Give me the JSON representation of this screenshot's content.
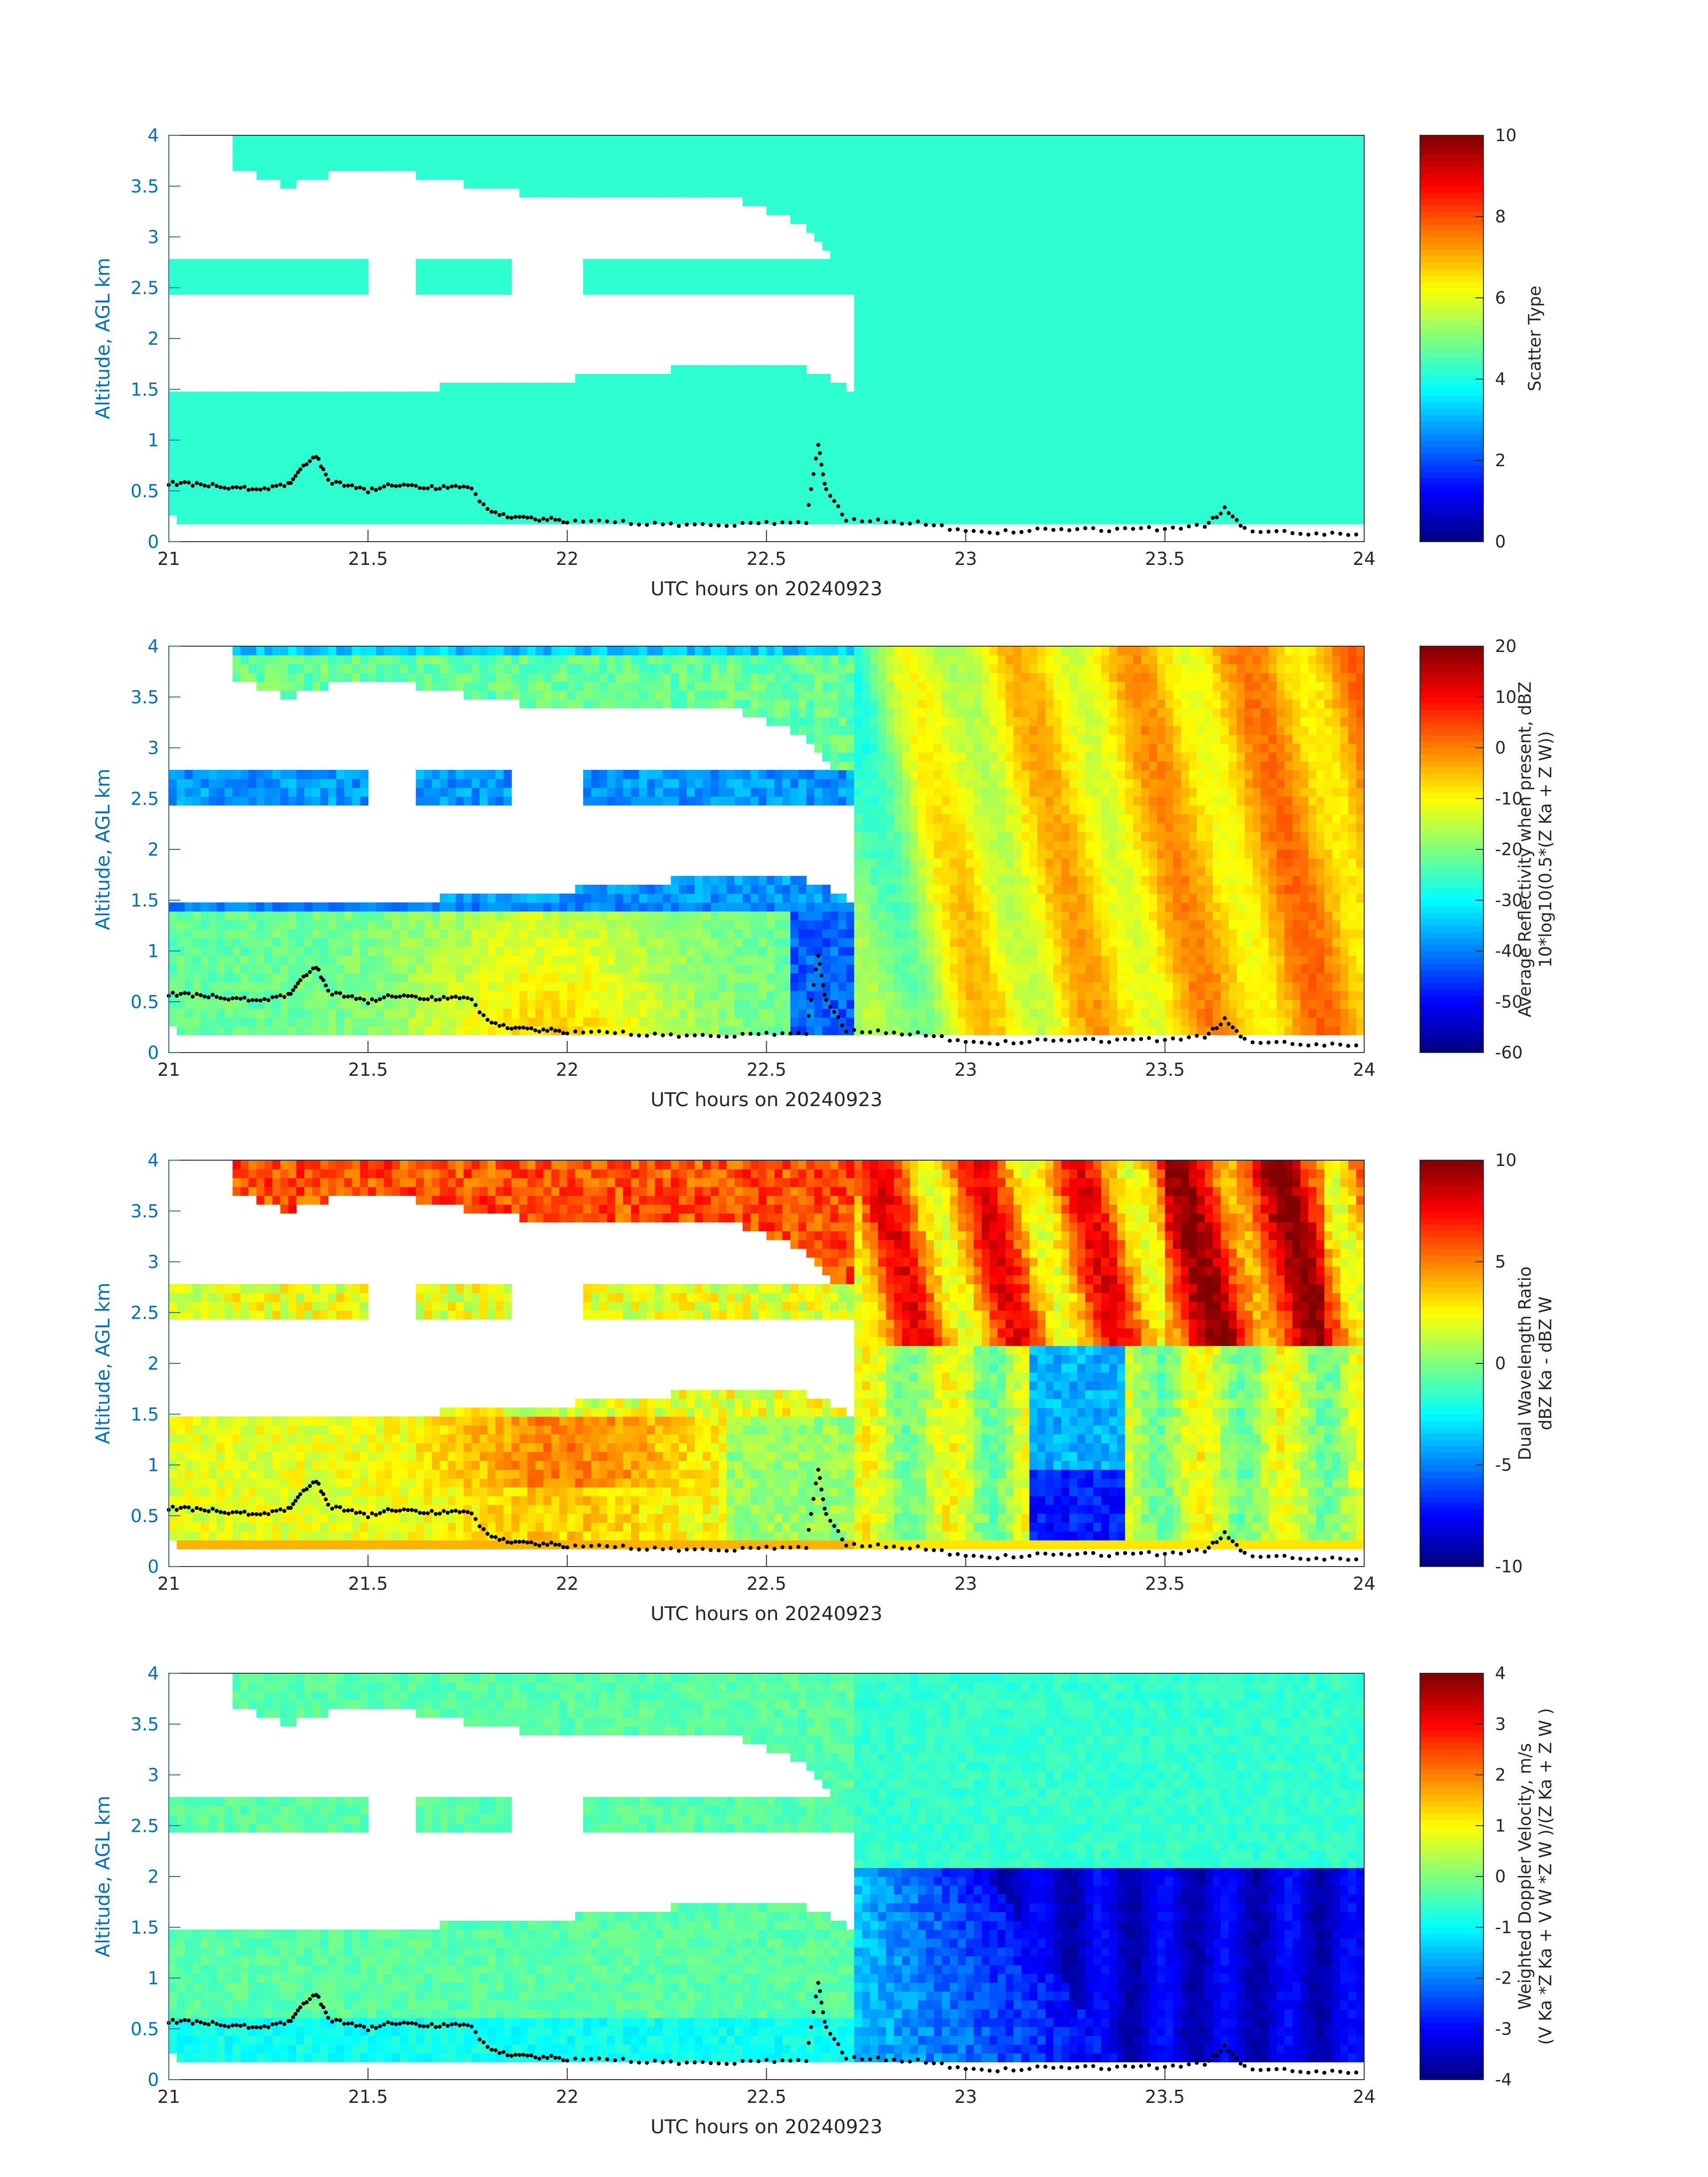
{
  "chart_data": [
    {
      "type": "heatmap",
      "panel": "scatter-type",
      "xlabel": "UTC hours on 20240923",
      "ylabel": "Altitude, AGL km",
      "xlim": [
        21,
        24
      ],
      "ylim": [
        0,
        4
      ],
      "xticks": [
        "21",
        "21.5",
        "22",
        "22.5",
        "23",
        "23.5",
        "24"
      ],
      "yticks": [
        "0",
        "0.5",
        "1",
        "1.5",
        "2",
        "2.5",
        "3",
        "3.5",
        "4"
      ],
      "colorbar": {
        "label_lines": [
          "Scatter Type"
        ],
        "ticks": [
          "0",
          "2",
          "4",
          "6",
          "8",
          "10"
        ],
        "range": [
          0,
          10
        ],
        "colormap": "jet"
      },
      "field": "scatter",
      "uniform_value": 4.2
    },
    {
      "type": "heatmap",
      "panel": "reflectivity",
      "xlabel": "UTC hours on 20240923",
      "ylabel": "Altitude, AGL km",
      "xlim": [
        21,
        24
      ],
      "ylim": [
        0,
        4
      ],
      "xticks": [
        "21",
        "21.5",
        "22",
        "22.5",
        "23",
        "23.5",
        "24"
      ],
      "yticks": [
        "0",
        "0.5",
        "1",
        "1.5",
        "2",
        "2.5",
        "3",
        "3.5",
        "4"
      ],
      "colorbar": {
        "label_lines": [
          "Average Reflectivity when present, dBZ",
          "10*log10(0.5*(Z Ka + Z W))"
        ],
        "ticks": [
          "-60",
          "-50",
          "-40",
          "-30",
          "-20",
          "-10",
          "0",
          "10",
          "20"
        ],
        "range": [
          -60,
          20
        ],
        "colormap": "jet"
      },
      "field": "reflectivity"
    },
    {
      "type": "heatmap",
      "panel": "dwr",
      "xlabel": "UTC hours on 20240923",
      "ylabel": "Altitude, AGL km",
      "xlim": [
        21,
        24
      ],
      "ylim": [
        0,
        4
      ],
      "xticks": [
        "21",
        "21.5",
        "22",
        "22.5",
        "23",
        "23.5",
        "24"
      ],
      "yticks": [
        "0",
        "0.5",
        "1",
        "1.5",
        "2",
        "2.5",
        "3",
        "3.5",
        "4"
      ],
      "colorbar": {
        "label_lines": [
          "Dual Wavelength Ratio",
          "dBZ Ka - dBZ W"
        ],
        "ticks": [
          "-10",
          "-5",
          "0",
          "5",
          "10"
        ],
        "range": [
          -10,
          10
        ],
        "colormap": "jet"
      },
      "field": "dwr"
    },
    {
      "type": "heatmap",
      "panel": "doppler",
      "xlabel": "UTC hours on 20240923",
      "ylabel": "Altitude, AGL km",
      "xlim": [
        21,
        24
      ],
      "ylim": [
        0,
        4
      ],
      "xticks": [
        "21",
        "21.5",
        "22",
        "22.5",
        "23",
        "23.5",
        "24"
      ],
      "yticks": [
        "0",
        "0.5",
        "1",
        "1.5",
        "2",
        "2.5",
        "3",
        "3.5",
        "4"
      ],
      "colorbar": {
        "label_lines": [
          "Weighted Doppler Velocity, m/s",
          "(V Ka *Z Ka + V W *Z W )/(Z Ka + Z W )"
        ],
        "ticks": [
          "-4",
          "-3",
          "-2",
          "-1",
          "0",
          "1",
          "2",
          "3",
          "4"
        ],
        "range": [
          -4,
          4
        ],
        "colormap": "jet"
      },
      "field": "doppler"
    }
  ],
  "overlay": {
    "description_marker": "black dots (cloud base)",
    "base_points": [
      [
        21.0,
        0.57
      ],
      [
        21.05,
        0.57
      ],
      [
        21.1,
        0.56
      ],
      [
        21.15,
        0.53
      ],
      [
        21.2,
        0.52
      ],
      [
        21.25,
        0.53
      ],
      [
        21.3,
        0.57
      ],
      [
        21.33,
        0.7
      ],
      [
        21.37,
        0.85
      ],
      [
        21.4,
        0.6
      ],
      [
        21.45,
        0.55
      ],
      [
        21.5,
        0.5
      ],
      [
        21.55,
        0.56
      ],
      [
        21.6,
        0.55
      ],
      [
        21.65,
        0.54
      ],
      [
        21.7,
        0.53
      ],
      [
        21.75,
        0.55
      ],
      [
        21.8,
        0.32
      ],
      [
        21.85,
        0.25
      ],
      [
        21.9,
        0.22
      ],
      [
        21.95,
        0.22
      ],
      [
        22.0,
        0.2
      ],
      [
        22.1,
        0.2
      ],
      [
        22.2,
        0.18
      ],
      [
        22.3,
        0.17
      ],
      [
        22.4,
        0.17
      ],
      [
        22.5,
        0.18
      ],
      [
        22.6,
        0.2
      ],
      [
        22.63,
        0.95
      ],
      [
        22.65,
        0.5
      ],
      [
        22.7,
        0.22
      ],
      [
        22.8,
        0.2
      ],
      [
        22.9,
        0.18
      ],
      [
        23.0,
        0.1
      ],
      [
        23.1,
        0.1
      ],
      [
        23.2,
        0.12
      ],
      [
        23.3,
        0.12
      ],
      [
        23.4,
        0.12
      ],
      [
        23.5,
        0.13
      ],
      [
        23.6,
        0.15
      ],
      [
        23.65,
        0.32
      ],
      [
        23.7,
        0.12
      ],
      [
        23.8,
        0.1
      ],
      [
        23.9,
        0.08
      ],
      [
        24.0,
        0.07
      ]
    ]
  }
}
